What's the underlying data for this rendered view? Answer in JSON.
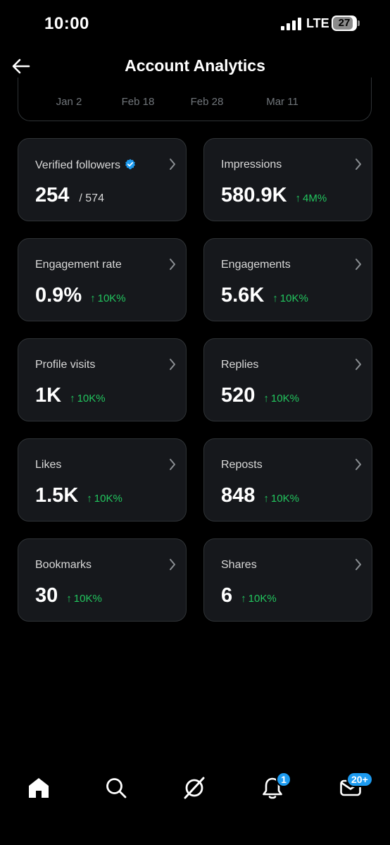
{
  "status_bar": {
    "time": "10:00",
    "network": "LTE",
    "battery": "27"
  },
  "header": {
    "title": "Account Analytics",
    "back_icon": "arrow-left-icon"
  },
  "chart": {
    "x_labels": [
      "Jan 2",
      "Feb 18",
      "Feb 28",
      "Mar 11"
    ]
  },
  "metrics": [
    {
      "label": "Verified followers",
      "value": "254",
      "total": "/ 574",
      "change": "",
      "verified": true
    },
    {
      "label": "Impressions",
      "value": "580.9K",
      "total": "",
      "change": "4M%"
    },
    {
      "label": "Engagement rate",
      "value": "0.9%",
      "total": "",
      "change": "10K%"
    },
    {
      "label": "Engagements",
      "value": "5.6K",
      "total": "",
      "change": "10K%"
    },
    {
      "label": "Profile visits",
      "value": "1K",
      "total": "",
      "change": "10K%"
    },
    {
      "label": "Replies",
      "value": "520",
      "total": "",
      "change": "10K%"
    },
    {
      "label": "Likes",
      "value": "1.5K",
      "total": "",
      "change": "10K%"
    },
    {
      "label": "Reposts",
      "value": "848",
      "total": "",
      "change": "10K%"
    },
    {
      "label": "Bookmarks",
      "value": "30",
      "total": "",
      "change": "10K%"
    },
    {
      "label": "Shares",
      "value": "6",
      "total": "",
      "change": "10K%"
    }
  ],
  "colors": {
    "background": "#000000",
    "card": "#16181c",
    "border": "#2f3336",
    "positive": "#22c55e",
    "accent": "#1d9bf0"
  },
  "bottom_nav": {
    "items": [
      "home-icon",
      "search-icon",
      "grok-icon",
      "notifications-icon",
      "messages-icon"
    ],
    "notifications_badge": "1",
    "messages_badge": "20+"
  }
}
